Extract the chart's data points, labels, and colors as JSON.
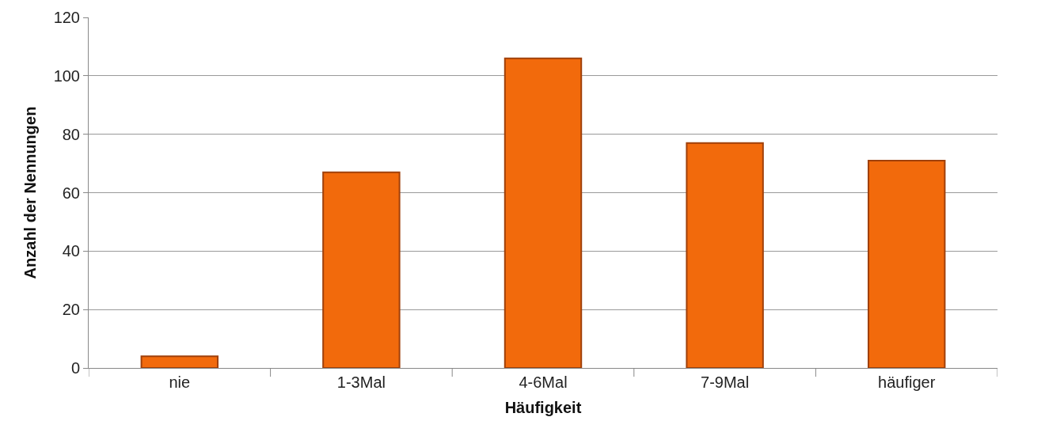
{
  "chart_data": {
    "type": "bar",
    "xlabel": "Häufigkeit",
    "ylabel": "Anzahl der Nennungen",
    "categories": [
      "nie",
      "1-3Mal",
      "4-6Mal",
      "7-9Mal",
      "häufiger"
    ],
    "values": [
      4,
      67,
      106,
      77,
      71
    ],
    "color": "#f26a0c",
    "ylim": [
      0,
      120
    ],
    "yticks": [
      0,
      20,
      40,
      60,
      80,
      100,
      120
    ],
    "grid": "y"
  }
}
